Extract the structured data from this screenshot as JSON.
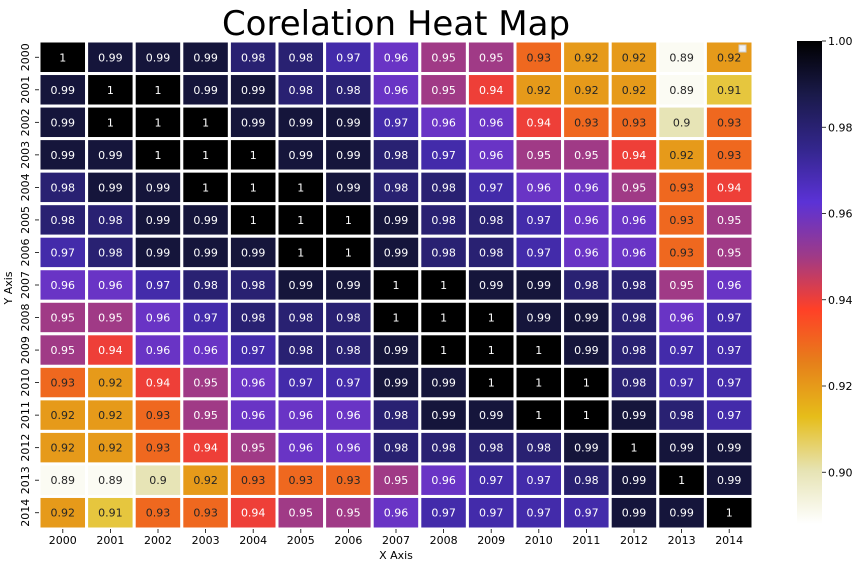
{
  "chart_data": {
    "type": "heatmap",
    "title": "Corelation Heat Map",
    "xlabel": "X Axis",
    "ylabel": "Y Axis",
    "x_labels": [
      "2000",
      "2001",
      "2002",
      "2003",
      "2004",
      "2005",
      "2006",
      "2007",
      "2008",
      "2009",
      "2010",
      "2011",
      "2012",
      "2013",
      "2014"
    ],
    "y_labels": [
      "2000",
      "2001",
      "2002",
      "2003",
      "2004",
      "2005",
      "2006",
      "2007",
      "2008",
      "2009",
      "2010",
      "2011",
      "2012",
      "2013",
      "2014"
    ],
    "matrix": [
      [
        1,
        0.99,
        0.99,
        0.99,
        0.98,
        0.98,
        0.97,
        0.96,
        0.95,
        0.95,
        0.93,
        0.92,
        0.92,
        0.89,
        0.92
      ],
      [
        0.99,
        1,
        1,
        0.99,
        0.99,
        0.98,
        0.98,
        0.96,
        0.95,
        0.94,
        0.92,
        0.92,
        0.92,
        0.89,
        0.91
      ],
      [
        0.99,
        1,
        1,
        1,
        0.99,
        0.99,
        0.99,
        0.97,
        0.96,
        0.96,
        0.94,
        0.93,
        0.93,
        0.9,
        0.93
      ],
      [
        0.99,
        0.99,
        1,
        1,
        1,
        0.99,
        0.99,
        0.98,
        0.97,
        0.96,
        0.95,
        0.95,
        0.94,
        0.92,
        0.93
      ],
      [
        0.98,
        0.99,
        0.99,
        1,
        1,
        1,
        0.99,
        0.98,
        0.98,
        0.97,
        0.96,
        0.96,
        0.95,
        0.93,
        0.94
      ],
      [
        0.98,
        0.98,
        0.99,
        0.99,
        1,
        1,
        1,
        0.99,
        0.98,
        0.98,
        0.97,
        0.96,
        0.96,
        0.93,
        0.95
      ],
      [
        0.97,
        0.98,
        0.99,
        0.99,
        0.99,
        1,
        1,
        0.99,
        0.98,
        0.98,
        0.97,
        0.96,
        0.96,
        0.93,
        0.95
      ],
      [
        0.96,
        0.96,
        0.97,
        0.98,
        0.98,
        0.99,
        0.99,
        1,
        1,
        0.99,
        0.99,
        0.98,
        0.98,
        0.95,
        0.96
      ],
      [
        0.95,
        0.95,
        0.96,
        0.97,
        0.98,
        0.98,
        0.98,
        1,
        1,
        1,
        0.99,
        0.99,
        0.98,
        0.96,
        0.97
      ],
      [
        0.95,
        0.94,
        0.96,
        0.96,
        0.97,
        0.98,
        0.98,
        0.99,
        1,
        1,
        1,
        0.99,
        0.98,
        0.97,
        0.97
      ],
      [
        0.93,
        0.92,
        0.94,
        0.95,
        0.96,
        0.97,
        0.97,
        0.99,
        0.99,
        1,
        1,
        1,
        0.98,
        0.97,
        0.97
      ],
      [
        0.92,
        0.92,
        0.93,
        0.95,
        0.96,
        0.96,
        0.96,
        0.98,
        0.99,
        0.99,
        1,
        1,
        0.99,
        0.98,
        0.97
      ],
      [
        0.92,
        0.92,
        0.93,
        0.94,
        0.95,
        0.96,
        0.96,
        0.98,
        0.98,
        0.98,
        0.98,
        0.99,
        1,
        0.99,
        0.99
      ],
      [
        0.89,
        0.89,
        0.9,
        0.92,
        0.93,
        0.93,
        0.93,
        0.95,
        0.96,
        0.97,
        0.97,
        0.98,
        0.99,
        1,
        0.99
      ],
      [
        0.92,
        0.91,
        0.93,
        0.93,
        0.94,
        0.95,
        0.95,
        0.96,
        0.97,
        0.97,
        0.97,
        0.97,
        0.99,
        0.99,
        1
      ]
    ],
    "color_range": [
      0.888,
      1.0
    ],
    "colormap": "CMRmap_r",
    "colormap_stops": [
      "#ffffff",
      "#e6e3b3",
      "#e6bd1a",
      "#e6801a",
      "#ff4027",
      "#9e3a88",
      "#5b32d6",
      "#33268c",
      "#1a1a4a",
      "#000000"
    ],
    "colorbar_ticks": [
      0.9,
      0.92,
      0.94,
      0.96,
      0.98,
      1.0
    ],
    "colorbar_tick_labels": [
      "0.90",
      "0.92",
      "0.94",
      "0.96",
      "0.98",
      "1.00"
    ],
    "grid": false,
    "legend_placement": "top-right"
  }
}
